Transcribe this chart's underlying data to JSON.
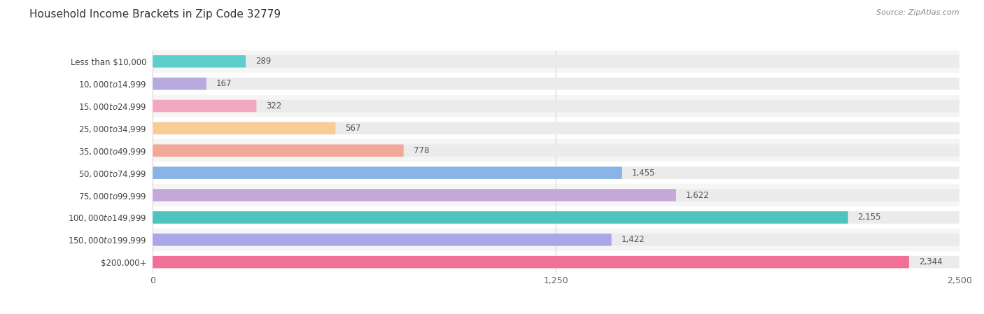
{
  "title": "Household Income Brackets in Zip Code 32779",
  "source": "Source: ZipAtlas.com",
  "categories": [
    "Less than $10,000",
    "$10,000 to $14,999",
    "$15,000 to $24,999",
    "$25,000 to $34,999",
    "$35,000 to $49,999",
    "$50,000 to $74,999",
    "$75,000 to $99,999",
    "$100,000 to $149,999",
    "$150,000 to $199,999",
    "$200,000+"
  ],
  "values": [
    289,
    167,
    322,
    567,
    778,
    1455,
    1622,
    2155,
    1422,
    2344
  ],
  "bar_colors": [
    "#5ECECA",
    "#B8AADF",
    "#F4A8C0",
    "#F9CC96",
    "#F0A898",
    "#8AB4E8",
    "#C4A8D8",
    "#4EC4BE",
    "#A8A8E8",
    "#F07098"
  ],
  "bar_bg_color": "#EBEBEB",
  "xlim": [
    0,
    2500
  ],
  "xticks": [
    0,
    1250,
    2500
  ],
  "title_fontsize": 11,
  "label_fontsize": 8.5,
  "value_fontsize": 8.5,
  "background_color": "#FFFFFF",
  "bar_height": 0.55,
  "row_bg_colors": [
    "#F5F5F5",
    "#FFFFFF"
  ]
}
